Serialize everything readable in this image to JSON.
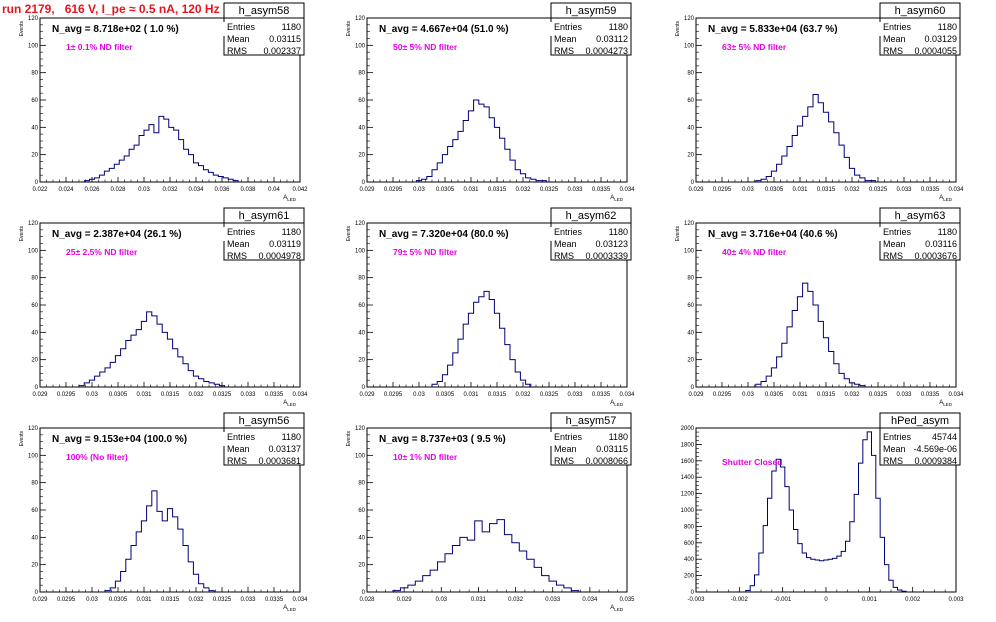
{
  "page_title": "run 2179,   616 V, I_pe ≈ 0.5 nA, 120 Hz",
  "chart_data": [
    {
      "type": "bar",
      "id": "h_asym58",
      "stats": {
        "name": "h_asym58",
        "entries": "1180",
        "mean": "0.03115",
        "rms": "0.002337"
      },
      "navg": "N_avg = 8.718e+02 ( 1.0 %)",
      "filter": "1± 0.1% ND filter",
      "ylabel": "Events",
      "xlabel": "A_LED",
      "xlim": [
        0.021,
        0.042
      ],
      "ylim": [
        0,
        120
      ],
      "xticks": [
        "0.022",
        "0.024",
        "0.026",
        "0.028",
        "0.03",
        "0.032",
        "0.034",
        "0.036",
        "0.038",
        "0.04",
        "0.042"
      ],
      "yticks": [
        "0",
        "20",
        "40",
        "60",
        "80",
        "100",
        "120"
      ],
      "x": [
        0.0248,
        0.0252,
        0.0256,
        0.026,
        0.0264,
        0.0268,
        0.0272,
        0.0276,
        0.028,
        0.0284,
        0.0288,
        0.0292,
        0.0296,
        0.03,
        0.0304,
        0.0308,
        0.0312,
        0.0316,
        0.032,
        0.0324,
        0.0328,
        0.0332,
        0.0336,
        0.034,
        0.0344,
        0.0348,
        0.0352,
        0.0356,
        0.036,
        0.0364,
        0.0368
      ],
      "values": [
        1,
        2,
        3,
        5,
        8,
        10,
        13,
        16,
        19,
        24,
        27,
        34,
        38,
        42,
        36,
        48,
        46,
        40,
        38,
        31,
        24,
        20,
        14,
        12,
        9,
        7,
        5,
        4,
        3,
        2,
        1
      ]
    },
    {
      "type": "bar",
      "id": "h_asym59",
      "stats": {
        "name": "h_asym59",
        "entries": "1180",
        "mean": "0.03112",
        "rms": "0.0004273"
      },
      "navg": "N_avg = 4.667e+04 (51.0 %)",
      "filter": "50± 5% ND filter",
      "ylabel": "Events",
      "xlabel": "A_LED",
      "xlim": [
        0.029,
        0.034
      ],
      "ylim": [
        0,
        120
      ],
      "xticks": [
        "0.029",
        "0.0295",
        "0.03",
        "0.0305",
        "0.031",
        "0.0315",
        "0.032",
        "0.0325",
        "0.033",
        "0.0335",
        "0.034"
      ],
      "yticks": [
        "0",
        "20",
        "40",
        "60",
        "80",
        "100",
        "120"
      ],
      "x": [
        0.03,
        0.0301,
        0.0302,
        0.0303,
        0.0304,
        0.0305,
        0.0306,
        0.0307,
        0.0308,
        0.0309,
        0.031,
        0.0311,
        0.0312,
        0.0313,
        0.0314,
        0.0315,
        0.0316,
        0.0317,
        0.0318,
        0.0319,
        0.032,
        0.0321,
        0.0322,
        0.0323,
        0.0324
      ],
      "values": [
        1,
        2,
        4,
        9,
        14,
        20,
        26,
        31,
        37,
        45,
        52,
        60,
        57,
        55,
        47,
        40,
        32,
        24,
        16,
        9,
        6,
        3,
        2,
        1,
        1
      ]
    },
    {
      "type": "bar",
      "id": "h_asym60",
      "stats": {
        "name": "h_asym60",
        "entries": "1180",
        "mean": "0.03129",
        "rms": "0.0004055"
      },
      "navg": "N_avg = 5.833e+04 (63.7 %)",
      "filter": "63± 5% ND filter",
      "ylabel": "Events",
      "xlabel": "A_LED",
      "xlim": [
        0.029,
        0.034
      ],
      "ylim": [
        0,
        120
      ],
      "xticks": [
        "0.029",
        "0.0295",
        "0.03",
        "0.0305",
        "0.031",
        "0.0315",
        "0.032",
        "0.0325",
        "0.033",
        "0.0335",
        "0.034"
      ],
      "yticks": [
        "0",
        "20",
        "40",
        "60",
        "80",
        "100",
        "120"
      ],
      "x": [
        0.0302,
        0.0303,
        0.0304,
        0.0305,
        0.0306,
        0.0307,
        0.0308,
        0.0309,
        0.031,
        0.0311,
        0.0312,
        0.0313,
        0.0314,
        0.0315,
        0.0316,
        0.0317,
        0.0318,
        0.0319,
        0.032,
        0.0321,
        0.0322,
        0.0323,
        0.0324
      ],
      "values": [
        1,
        2,
        4,
        8,
        13,
        19,
        26,
        34,
        41,
        48,
        55,
        64,
        58,
        51,
        44,
        36,
        27,
        18,
        10,
        5,
        3,
        1,
        1
      ]
    },
    {
      "type": "bar",
      "id": "h_asym61",
      "stats": {
        "name": "h_asym61",
        "entries": "1180",
        "mean": "0.03119",
        "rms": "0.0004978"
      },
      "navg": "N_avg = 2.387e+04 (26.1 %)",
      "filter": "25± 2.5% ND filter",
      "ylabel": "Events",
      "xlabel": "A_LED",
      "xlim": [
        0.029,
        0.034
      ],
      "ylim": [
        0,
        120
      ],
      "xticks": [
        "0.029",
        "0.0295",
        "0.03",
        "0.0305",
        "0.031",
        "0.0315",
        "0.032",
        "0.0325",
        "0.033",
        "0.0335",
        "0.034"
      ],
      "yticks": [
        "0",
        "20",
        "40",
        "60",
        "80",
        "100",
        "120"
      ],
      "x": [
        0.0298,
        0.0299,
        0.03,
        0.0301,
        0.0302,
        0.0303,
        0.0304,
        0.0305,
        0.0306,
        0.0307,
        0.0308,
        0.0309,
        0.031,
        0.0311,
        0.0312,
        0.0313,
        0.0314,
        0.0315,
        0.0316,
        0.0317,
        0.0318,
        0.0319,
        0.032,
        0.0321,
        0.0322,
        0.0323,
        0.0324,
        0.0325
      ],
      "values": [
        1,
        3,
        5,
        8,
        11,
        14,
        18,
        23,
        28,
        34,
        38,
        42,
        48,
        55,
        52,
        46,
        40,
        35,
        28,
        22,
        17,
        12,
        8,
        6,
        4,
        3,
        2,
        1
      ]
    },
    {
      "type": "bar",
      "id": "h_asym62",
      "stats": {
        "name": "h_asym62",
        "entries": "1180",
        "mean": "0.03123",
        "rms": "0.0003339"
      },
      "navg": "N_avg = 7.320e+04 (80.0 %)",
      "filter": "79± 5% ND filter",
      "ylabel": "Events",
      "xlabel": "A_LED",
      "xlim": [
        0.029,
        0.034
      ],
      "ylim": [
        0,
        120
      ],
      "xticks": [
        "0.029",
        "0.0295",
        "0.03",
        "0.0305",
        "0.031",
        "0.0315",
        "0.032",
        "0.0325",
        "0.033",
        "0.0335",
        "0.034"
      ],
      "yticks": [
        "0",
        "20",
        "40",
        "60",
        "80",
        "100",
        "120"
      ],
      "x": [
        0.0303,
        0.0304,
        0.0305,
        0.0306,
        0.0307,
        0.0308,
        0.0309,
        0.031,
        0.0311,
        0.0312,
        0.0313,
        0.0314,
        0.0315,
        0.0316,
        0.0317,
        0.0318,
        0.0319,
        0.032,
        0.0321
      ],
      "values": [
        2,
        4,
        9,
        16,
        25,
        35,
        46,
        54,
        62,
        66,
        70,
        64,
        54,
        43,
        31,
        20,
        11,
        5,
        2
      ]
    },
    {
      "type": "bar",
      "id": "h_asym63",
      "stats": {
        "name": "h_asym63",
        "entries": "1180",
        "mean": "0.03116",
        "rms": "0.0003676"
      },
      "navg": "N_avg = 3.716e+04 (40.6 %)",
      "filter": "40± 4% ND filter",
      "ylabel": "Events",
      "xlabel": "A_LED",
      "xlim": [
        0.029,
        0.034
      ],
      "ylim": [
        0,
        120
      ],
      "xticks": [
        "0.029",
        "0.0295",
        "0.03",
        "0.0305",
        "0.031",
        "0.0315",
        "0.032",
        "0.0325",
        "0.033",
        "0.0335",
        "0.034"
      ],
      "yticks": [
        "0",
        "20",
        "40",
        "60",
        "80",
        "100",
        "120"
      ],
      "x": [
        0.0302,
        0.0303,
        0.0304,
        0.0305,
        0.0306,
        0.0307,
        0.0308,
        0.0309,
        0.031,
        0.0311,
        0.0312,
        0.0313,
        0.0314,
        0.0315,
        0.0316,
        0.0317,
        0.0318,
        0.0319,
        0.032,
        0.0321,
        0.0322
      ],
      "values": [
        2,
        4,
        8,
        14,
        22,
        32,
        44,
        56,
        66,
        76,
        70,
        60,
        48,
        36,
        26,
        17,
        10,
        6,
        3,
        2,
        1
      ]
    },
    {
      "type": "bar",
      "id": "h_asym56",
      "stats": {
        "name": "h_asym56",
        "entries": "1180",
        "mean": "0.03137",
        "rms": "0.0003681"
      },
      "navg": "N_avg = 9.153e+04 (100.0 %)",
      "filter": "100% (No filter)",
      "ylabel": "Events",
      "xlabel": "A_LED",
      "xlim": [
        0.029,
        0.034
      ],
      "ylim": [
        0,
        120
      ],
      "xticks": [
        "0.029",
        "0.0295",
        "0.03",
        "0.0305",
        "0.031",
        "0.0315",
        "0.032",
        "0.0325",
        "0.033",
        "0.0335",
        "0.034"
      ],
      "yticks": [
        "0",
        "20",
        "40",
        "60",
        "80",
        "100",
        "120"
      ],
      "x": [
        0.0303,
        0.0304,
        0.0305,
        0.0306,
        0.0307,
        0.0308,
        0.0309,
        0.031,
        0.0311,
        0.0312,
        0.0313,
        0.0314,
        0.0315,
        0.0316,
        0.0317,
        0.0318,
        0.0319,
        0.032,
        0.0321,
        0.0322,
        0.0323
      ],
      "values": [
        1,
        3,
        8,
        15,
        24,
        34,
        44,
        52,
        63,
        74,
        59,
        52,
        61,
        55,
        46,
        34,
        22,
        13,
        6,
        3,
        1
      ]
    },
    {
      "type": "bar",
      "id": "h_asym57",
      "stats": {
        "name": "h_asym57",
        "entries": "1180",
        "mean": "0.03115",
        "rms": "0.0008066"
      },
      "navg": "N_avg = 8.737e+03 ( 9.5 %)",
      "filter": "10± 1% ND filter",
      "ylabel": "Events",
      "xlabel": "A_LED",
      "xlim": [
        0.028,
        0.035
      ],
      "ylim": [
        0,
        120
      ],
      "xticks": [
        "0.028",
        "0.029",
        "0.03",
        "0.031",
        "0.032",
        "0.033",
        "0.034",
        "0.035"
      ],
      "yticks": [
        "0",
        "20",
        "40",
        "60",
        "80",
        "100",
        "120"
      ],
      "x": [
        0.0288,
        0.029,
        0.0292,
        0.0294,
        0.0296,
        0.0298,
        0.03,
        0.0302,
        0.0304,
        0.0306,
        0.0308,
        0.031,
        0.0312,
        0.0314,
        0.0316,
        0.0318,
        0.032,
        0.0322,
        0.0324,
        0.0326,
        0.0328,
        0.033,
        0.0332,
        0.0334,
        0.0336
      ],
      "values": [
        1,
        3,
        5,
        8,
        12,
        16,
        22,
        28,
        34,
        40,
        38,
        52,
        44,
        50,
        53,
        42,
        36,
        30,
        24,
        18,
        12,
        8,
        5,
        3,
        1
      ]
    },
    {
      "type": "bar",
      "id": "hPed_asym",
      "stats": {
        "name": "hPed_asym",
        "entries": "45744",
        "mean": "-4.569e-06",
        "rms": "0.0009384"
      },
      "navg": "",
      "filter": "Shutter Closed",
      "ylabel": "",
      "xlabel": "",
      "xlim": [
        -0.003,
        0.003
      ],
      "ylim": [
        0,
        2100
      ],
      "xticks": [
        "-0.003",
        "-0.002",
        "-0.001",
        "0",
        "0.001",
        "0.002",
        "0.003"
      ],
      "yticks": [
        "0",
        "200",
        "400",
        "600",
        "800",
        "1000",
        "1200",
        "1400",
        "1600",
        "1800",
        "2000"
      ],
      "x": [
        -0.0018,
        -0.0017,
        -0.0016,
        -0.0015,
        -0.0014,
        -0.0013,
        -0.0012,
        -0.0011,
        -0.001,
        -0.0009,
        -0.0008,
        -0.0007,
        -0.0006,
        -0.0005,
        -0.0004,
        -0.0003,
        -0.0002,
        -0.0001,
        0,
        0.0001,
        0.0002,
        0.0003,
        0.0004,
        0.0005,
        0.0006,
        0.0007,
        0.0008,
        0.0009,
        0.001,
        0.0011,
        0.0012,
        0.0013,
        0.0014,
        0.0015,
        0.0016,
        0.0017,
        0.0018
      ],
      "values": [
        20,
        80,
        220,
        500,
        850,
        1200,
        1550,
        1700,
        1600,
        1350,
        1050,
        800,
        620,
        500,
        440,
        420,
        410,
        400,
        410,
        420,
        430,
        460,
        520,
        650,
        900,
        1250,
        1650,
        1950,
        2050,
        1750,
        1200,
        700,
        350,
        150,
        60,
        25,
        10
      ]
    }
  ]
}
